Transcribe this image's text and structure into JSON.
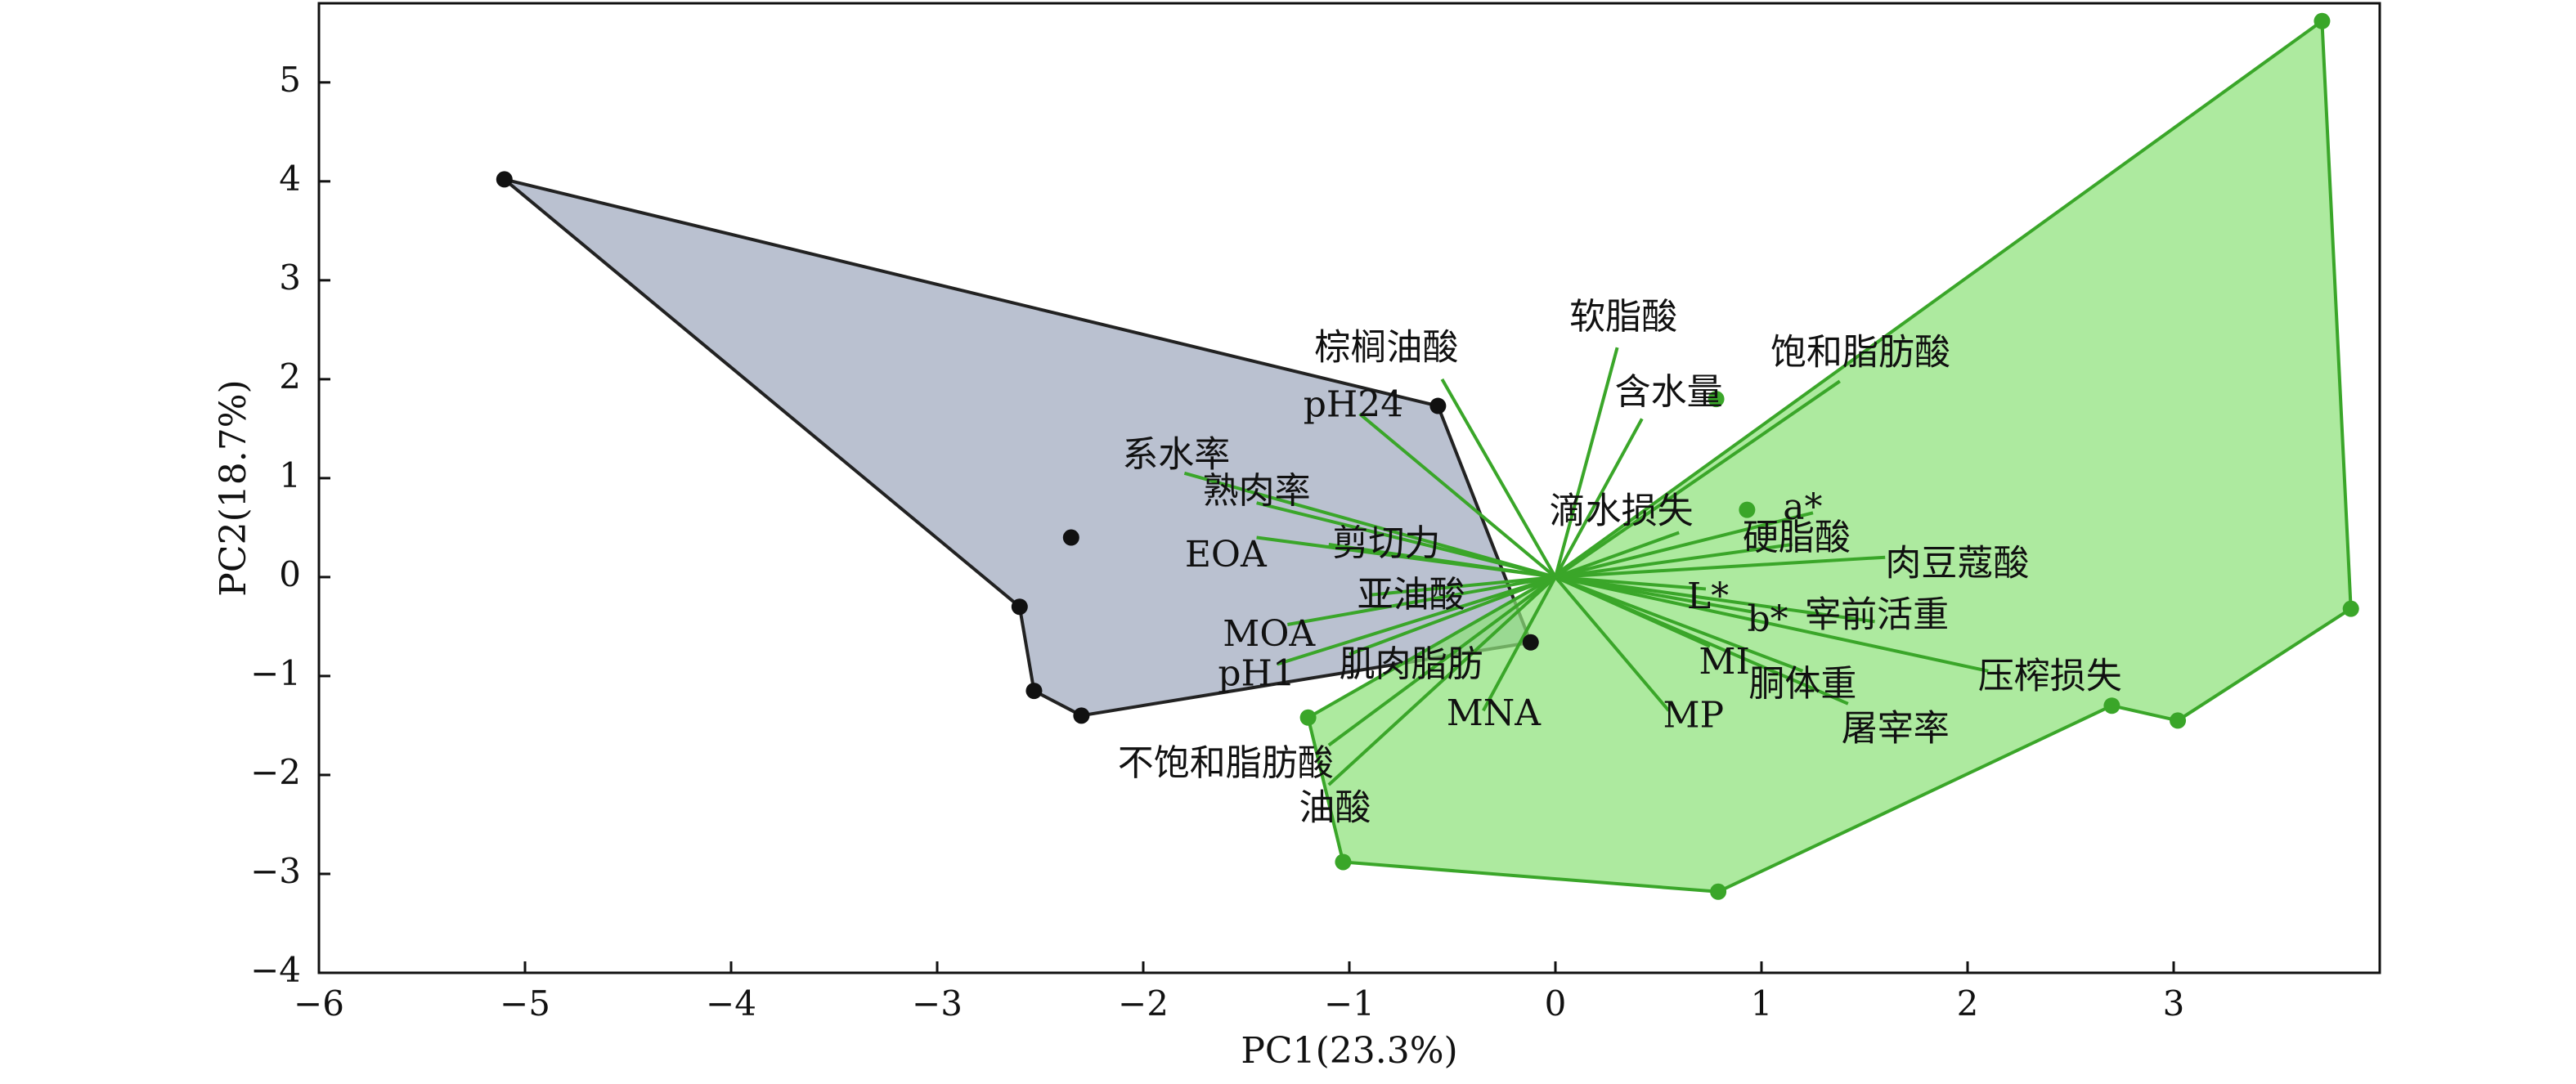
{
  "chart_data": {
    "type": "scatter",
    "subtype": "pca-biplot",
    "title": "",
    "xlabel": "PC1(23.3%)",
    "ylabel": "PC2(18.7%)",
    "xlim": [
      -6,
      4
    ],
    "ylim": [
      -4,
      5.8
    ],
    "xticks": [
      -6,
      -5,
      -4,
      -3,
      -2,
      -1,
      0,
      1,
      2,
      3
    ],
    "yticks": [
      -4,
      -3,
      -2,
      -1,
      0,
      1,
      2,
      3,
      4,
      5
    ],
    "grid": false,
    "colors": {
      "group1_point": "#111111",
      "group1_fill": "#a7b0c3",
      "group1_edge": "#222222",
      "group2_point": "#3aa629",
      "group2_fill": "#8de27a",
      "group2_edge": "#3aa629",
      "loading_line": "#3aa629"
    },
    "groups": [
      {
        "points": [
          [
            -5.1,
            4.02
          ],
          [
            -0.57,
            1.73
          ],
          [
            -2.35,
            0.4
          ],
          [
            -2.6,
            -0.3
          ],
          [
            -0.12,
            -0.66
          ],
          [
            -2.53,
            -1.15
          ],
          [
            -2.3,
            -1.4
          ]
        ],
        "hull": [
          [
            -5.1,
            4.02
          ],
          [
            -0.57,
            1.73
          ],
          [
            -0.12,
            -0.66
          ],
          [
            -2.3,
            -1.4
          ],
          [
            -2.53,
            -1.15
          ],
          [
            -2.6,
            -0.3
          ]
        ]
      },
      {
        "points": [
          [
            3.72,
            5.62
          ],
          [
            0.93,
            0.68
          ],
          [
            0.78,
            1.8
          ],
          [
            3.86,
            -0.32
          ],
          [
            2.7,
            -1.3
          ],
          [
            3.02,
            -1.45
          ],
          [
            -1.2,
            -1.42
          ],
          [
            -1.03,
            -2.88
          ],
          [
            0.79,
            -3.18
          ]
        ],
        "hull": [
          [
            3.72,
            5.62
          ],
          [
            3.86,
            -0.32
          ],
          [
            3.02,
            -1.45
          ],
          [
            2.7,
            -1.3
          ],
          [
            0.79,
            -3.18
          ],
          [
            -1.03,
            -2.88
          ],
          [
            -1.2,
            -1.42
          ],
          [
            -0.05,
            -0.05
          ]
        ]
      }
    ],
    "loadings": [
      {
        "label": "软脂酸",
        "x": 0.3,
        "y": 2.32,
        "lx": 0.33,
        "ly": 2.61
      },
      {
        "label": "饱和脂肪酸",
        "x": 1.38,
        "y": 1.98,
        "lx": 1.48,
        "ly": 2.25
      },
      {
        "label": "含水量",
        "x": 0.42,
        "y": 1.6,
        "lx": 0.55,
        "ly": 1.85
      },
      {
        "label": "棕榈油酸",
        "x": -0.55,
        "y": 2.0,
        "lx": -0.82,
        "ly": 2.3
      },
      {
        "label": "pH24",
        "x": -0.95,
        "y": 1.65,
        "lx": -0.98,
        "ly": 1.72,
        "latin": true
      },
      {
        "label": "系水率",
        "x": -1.8,
        "y": 1.05,
        "lx": -1.84,
        "ly": 1.22
      },
      {
        "label": "熟肉率",
        "x": -1.45,
        "y": 0.75,
        "lx": -1.45,
        "ly": 0.85
      },
      {
        "label": "剪切力",
        "x": -1.1,
        "y": 0.33,
        "lx": -0.82,
        "ly": 0.32
      },
      {
        "label": "EOA",
        "x": -1.45,
        "y": 0.4,
        "lx": -1.6,
        "ly": 0.2,
        "latin": true
      },
      {
        "label": "亚油酸",
        "x": -0.9,
        "y": -0.18,
        "lx": -0.7,
        "ly": -0.2
      },
      {
        "label": "MOA",
        "x": -1.3,
        "y": -0.48,
        "lx": -1.39,
        "ly": -0.6,
        "latin": true
      },
      {
        "label": "pH1",
        "x": -1.35,
        "y": -0.88,
        "lx": -1.45,
        "ly": -1.0,
        "latin": true
      },
      {
        "label": "肌肉脂肪",
        "x": -1.0,
        "y": -0.78,
        "lx": -0.7,
        "ly": -0.9
      },
      {
        "label": "不饱和脂肪酸",
        "x": -1.1,
        "y": -1.7,
        "lx": -1.6,
        "ly": -1.9
      },
      {
        "label": "油酸",
        "x": -1.1,
        "y": -2.1,
        "lx": -1.07,
        "ly": -2.35
      },
      {
        "label": "MNA",
        "x": -0.35,
        "y": -1.35,
        "lx": -0.3,
        "ly": -1.4,
        "latin": true
      },
      {
        "label": "MP",
        "x": 0.55,
        "y": -1.35,
        "lx": 0.67,
        "ly": -1.42,
        "latin": true
      },
      {
        "label": "MI",
        "x": 0.75,
        "y": -0.7,
        "lx": 0.82,
        "ly": -0.88,
        "latin": true
      },
      {
        "label": "胴体重",
        "x": 1.2,
        "y": -0.95,
        "lx": 1.2,
        "ly": -1.1
      },
      {
        "label": "屠宰率",
        "x": 1.42,
        "y": -1.28,
        "lx": 1.65,
        "ly": -1.55
      },
      {
        "label": "压榨损失",
        "x": 2.1,
        "y": -0.95,
        "lx": 2.4,
        "ly": -1.02
      },
      {
        "label": "宰前活重",
        "x": 1.55,
        "y": -0.45,
        "lx": 1.56,
        "ly": -0.4
      },
      {
        "label": "b*",
        "x": 0.95,
        "y": -0.35,
        "lx": 1.03,
        "ly": -0.45,
        "latin": true
      },
      {
        "label": "L*",
        "x": 0.73,
        "y": -0.12,
        "lx": 0.74,
        "ly": -0.22,
        "latin": true
      },
      {
        "label": "肉豆蔻酸",
        "x": 1.6,
        "y": 0.2,
        "lx": 1.95,
        "ly": 0.12
      },
      {
        "label": "硬脂酸",
        "x": 1.15,
        "y": 0.33,
        "lx": 1.17,
        "ly": 0.38
      },
      {
        "label": "a*",
        "x": 1.25,
        "y": 0.65,
        "lx": 1.2,
        "ly": 0.68,
        "latin": true
      },
      {
        "label": "滴水损失",
        "x": 0.6,
        "y": 0.45,
        "lx": 0.32,
        "ly": 0.65
      }
    ]
  }
}
